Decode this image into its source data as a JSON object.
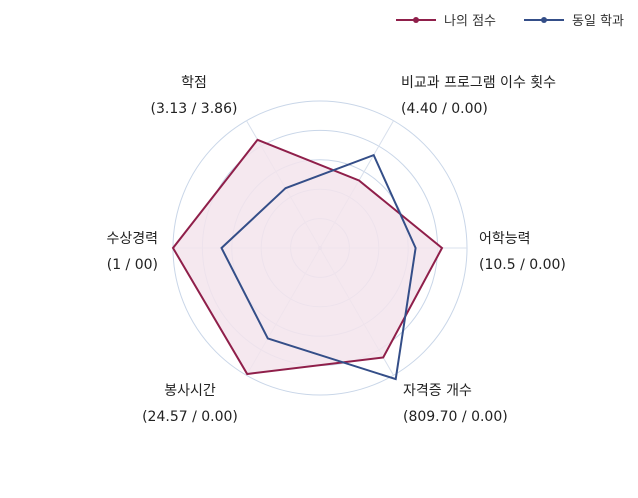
{
  "chart_data": {
    "type": "radar",
    "title": "",
    "legend_position": "top-right",
    "grid": true,
    "axes": [
      {
        "name": "학점",
        "value_label": "(3.13 / 3.86)"
      },
      {
        "name": "비교과 프로그램 이수 횟수",
        "value_label": "(4.40 / 0.00)"
      },
      {
        "name": "어학능력",
        "value_label": "(10.5 / 0.00)"
      },
      {
        "name": "자격증 개수",
        "value_label": "(809.70 / 0.00)"
      },
      {
        "name": "봉사시간",
        "value_label": "(24.57 / 0.00)"
      },
      {
        "name": "수상경력",
        "value_label": "(1 / 00)"
      }
    ],
    "r_range": [
      0,
      1
    ],
    "series": [
      {
        "name": "나의 점수",
        "color": "#8f1f4a",
        "fill": "#f3e4ec",
        "values": [
          0.85,
          0.53,
          0.83,
          0.86,
          0.99,
          1.0
        ]
      },
      {
        "name": "동일 학과",
        "color": "#344e88",
        "values": [
          0.47,
          0.73,
          0.65,
          1.03,
          0.71,
          0.67
        ]
      }
    ]
  }
}
